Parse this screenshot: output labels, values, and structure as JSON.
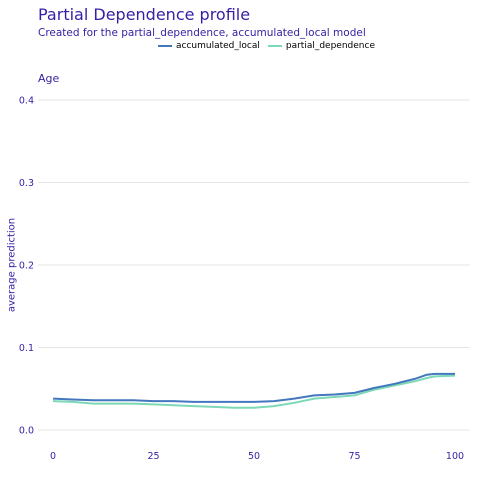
{
  "chart_data": {
    "type": "line",
    "title": "Partial Dependence profile",
    "subtitle": "Created for the partial_dependence, accumulated_local model",
    "facet": "Age",
    "xlabel": "",
    "ylabel": "average prediction",
    "xlim": [
      0,
      100
    ],
    "ylim": [
      0,
      0.4
    ],
    "x_ticks": [
      "0",
      "25",
      "50",
      "75",
      "100"
    ],
    "y_ticks": [
      "0.0",
      "0.1",
      "0.2",
      "0.3",
      "0.4"
    ],
    "grid": "horizontal",
    "legend_position": "top",
    "series": [
      {
        "name": "accumulated_local",
        "color": "#4378bf",
        "x": [
          0,
          5,
          10,
          15,
          20,
          25,
          30,
          35,
          40,
          45,
          50,
          55,
          60,
          65,
          70,
          75,
          80,
          85,
          90,
          93,
          95,
          100
        ],
        "y": [
          0.038,
          0.037,
          0.036,
          0.036,
          0.036,
          0.035,
          0.035,
          0.034,
          0.034,
          0.034,
          0.034,
          0.035,
          0.038,
          0.042,
          0.043,
          0.045,
          0.051,
          0.056,
          0.062,
          0.067,
          0.068,
          0.068
        ]
      },
      {
        "name": "partial_dependence",
        "color": "#7dd8b5",
        "x": [
          0,
          5,
          10,
          15,
          20,
          25,
          30,
          35,
          40,
          45,
          50,
          55,
          60,
          65,
          70,
          75,
          80,
          85,
          90,
          93,
          95,
          100
        ],
        "y": [
          0.035,
          0.034,
          0.032,
          0.032,
          0.032,
          0.031,
          0.03,
          0.029,
          0.028,
          0.027,
          0.027,
          0.029,
          0.033,
          0.038,
          0.04,
          0.042,
          0.049,
          0.054,
          0.059,
          0.063,
          0.065,
          0.066
        ]
      }
    ]
  }
}
